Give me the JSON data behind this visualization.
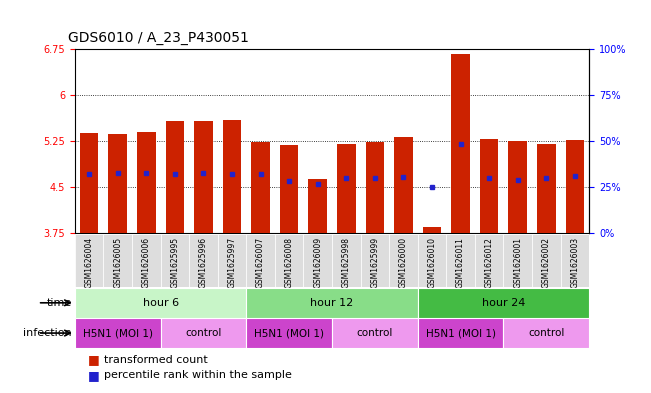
{
  "title": "GDS6010 / A_23_P430051",
  "samples": [
    "GSM1626004",
    "GSM1626005",
    "GSM1626006",
    "GSM1625995",
    "GSM1625996",
    "GSM1625997",
    "GSM1626007",
    "GSM1626008",
    "GSM1626009",
    "GSM1625998",
    "GSM1625999",
    "GSM1626000",
    "GSM1626010",
    "GSM1626011",
    "GSM1626012",
    "GSM1626001",
    "GSM1626002",
    "GSM1626003"
  ],
  "bar_heights": [
    5.38,
    5.37,
    5.4,
    5.57,
    5.57,
    5.59,
    5.24,
    5.18,
    4.63,
    5.21,
    5.23,
    5.32,
    3.85,
    6.67,
    5.28,
    5.25,
    5.2,
    5.27
  ],
  "blue_dot_y": [
    4.72,
    4.73,
    4.73,
    4.72,
    4.73,
    4.72,
    4.72,
    4.6,
    4.55,
    4.65,
    4.65,
    4.67,
    4.5,
    5.2,
    4.65,
    4.62,
    4.65,
    4.68
  ],
  "ylim": [
    3.75,
    6.75
  ],
  "yticks_left": [
    3.75,
    4.5,
    5.25,
    6.0,
    6.75
  ],
  "ytick_labels_left": [
    "3.75",
    "4.5",
    "5.25",
    "6",
    "6.75"
  ],
  "yticks_right_pct": [
    0,
    25,
    50,
    75,
    100
  ],
  "ytick_labels_right": [
    "0%",
    "25%",
    "50%",
    "75%",
    "100%"
  ],
  "bar_color": "#cc2200",
  "dot_color": "#2222cc",
  "bar_width": 0.65,
  "time_groups": [
    {
      "label": "hour 6",
      "start": 0,
      "end": 6,
      "color": "#c8f5c8"
    },
    {
      "label": "hour 12",
      "start": 6,
      "end": 12,
      "color": "#88dd88"
    },
    {
      "label": "hour 24",
      "start": 12,
      "end": 18,
      "color": "#44bb44"
    }
  ],
  "infection_groups": [
    {
      "label": "H5N1 (MOI 1)",
      "start": 0,
      "end": 3,
      "color": "#cc44cc"
    },
    {
      "label": "control",
      "start": 3,
      "end": 6,
      "color": "#ee99ee"
    },
    {
      "label": "H5N1 (MOI 1)",
      "start": 6,
      "end": 9,
      "color": "#cc44cc"
    },
    {
      "label": "control",
      "start": 9,
      "end": 12,
      "color": "#ee99ee"
    },
    {
      "label": "H5N1 (MOI 1)",
      "start": 12,
      "end": 15,
      "color": "#cc44cc"
    },
    {
      "label": "control",
      "start": 15,
      "end": 18,
      "color": "#ee99ee"
    }
  ],
  "dotted_lines": [
    4.5,
    5.25,
    6.0
  ],
  "title_fontsize": 10,
  "tick_fontsize": 7,
  "row_fontsize": 8,
  "legend_fontsize": 8
}
